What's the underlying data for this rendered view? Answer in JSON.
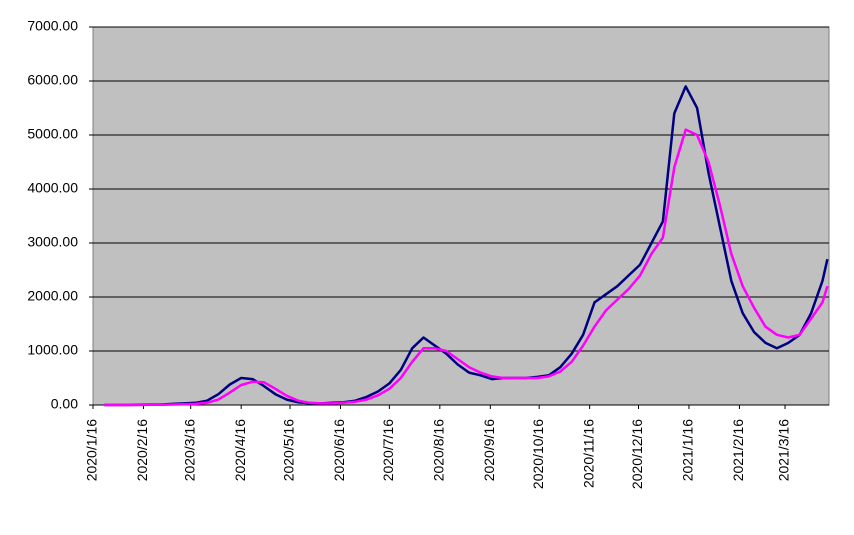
{
  "chart_data": {
    "type": "line",
    "x": [
      "2020/1/23",
      "2020/1/30",
      "2020/2/6",
      "2020/2/13",
      "2020/2/20",
      "2020/2/27",
      "2020/3/5",
      "2020/3/12",
      "2020/3/19",
      "2020/3/26",
      "2020/4/2",
      "2020/4/9",
      "2020/4/16",
      "2020/4/23",
      "2020/4/30",
      "2020/5/7",
      "2020/5/14",
      "2020/5/21",
      "2020/5/28",
      "2020/6/4",
      "2020/6/11",
      "2020/6/18",
      "2020/6/25",
      "2020/7/2",
      "2020/7/9",
      "2020/7/16",
      "2020/7/23",
      "2020/7/30",
      "2020/8/6",
      "2020/8/13",
      "2020/8/20",
      "2020/8/27",
      "2020/9/3",
      "2020/9/10",
      "2020/9/17",
      "2020/9/24",
      "2020/10/1",
      "2020/10/8",
      "2020/10/15",
      "2020/10/22",
      "2020/10/29",
      "2020/11/5",
      "2020/11/12",
      "2020/11/19",
      "2020/11/26",
      "2020/12/3",
      "2020/12/10",
      "2020/12/17",
      "2020/12/24",
      "2020/12/31",
      "2021/1/7",
      "2021/1/14",
      "2021/1/21",
      "2021/1/28",
      "2021/2/4",
      "2021/2/11",
      "2021/2/18",
      "2021/2/25",
      "2021/3/4",
      "2021/3/11",
      "2021/3/18",
      "2021/3/25",
      "2021/4/1",
      "2021/4/8",
      "2021/4/11"
    ],
    "series": [
      {
        "color": "#000080",
        "values": [
          0,
          0,
          0,
          5,
          10,
          10,
          20,
          30,
          40,
          80,
          200,
          380,
          500,
          480,
          350,
          200,
          100,
          50,
          30,
          30,
          40,
          50,
          80,
          150,
          250,
          400,
          650,
          1050,
          1250,
          1100,
          950,
          750,
          600,
          550,
          480,
          500,
          500,
          500,
          520,
          550,
          700,
          950,
          1300,
          1900,
          2050,
          2200,
          2400,
          2600,
          3000,
          3400,
          5400,
          5900,
          5500,
          4300,
          3300,
          2300,
          1700,
          1350,
          1150,
          1050,
          1150,
          1300,
          1700,
          2300,
          2700
        ]
      },
      {
        "color": "#ff00ff",
        "values": [
          0,
          0,
          0,
          0,
          5,
          5,
          10,
          15,
          20,
          40,
          100,
          230,
          370,
          430,
          420,
          300,
          170,
          80,
          40,
          30,
          30,
          40,
          60,
          100,
          180,
          300,
          500,
          800,
          1050,
          1050,
          1000,
          850,
          700,
          600,
          530,
          500,
          500,
          500,
          500,
          530,
          620,
          800,
          1100,
          1450,
          1750,
          1950,
          2150,
          2400,
          2800,
          3100,
          4400,
          5100,
          5000,
          4500,
          3700,
          2800,
          2200,
          1800,
          1450,
          1300,
          1250,
          1300,
          1600,
          1900,
          2200
        ]
      }
    ],
    "xlim": [
      "2020/1/16",
      "2021/4/12"
    ],
    "xticks": [
      "2020/1/16",
      "2020/2/16",
      "2020/3/16",
      "2020/4/16",
      "2020/5/16",
      "2020/6/16",
      "2020/7/16",
      "2020/8/16",
      "2020/9/16",
      "2020/10/16",
      "2020/11/16",
      "2020/12/16",
      "2021/1/16",
      "2021/2/16",
      "2021/3/16"
    ],
    "ylim": [
      0,
      7000
    ],
    "yticks": [
      {
        "value": 0,
        "label": "0.00"
      },
      {
        "value": 1000,
        "label": "1000.00"
      },
      {
        "value": 2000,
        "label": "2000.00"
      },
      {
        "value": 3000,
        "label": "3000.00"
      },
      {
        "value": 4000,
        "label": "4000.00"
      },
      {
        "value": 5000,
        "label": "5000.00"
      },
      {
        "value": 6000,
        "label": "6000.00"
      },
      {
        "value": 7000,
        "label": "7000.00"
      }
    ],
    "grid": true,
    "plot_background": "#c0c0c0"
  }
}
